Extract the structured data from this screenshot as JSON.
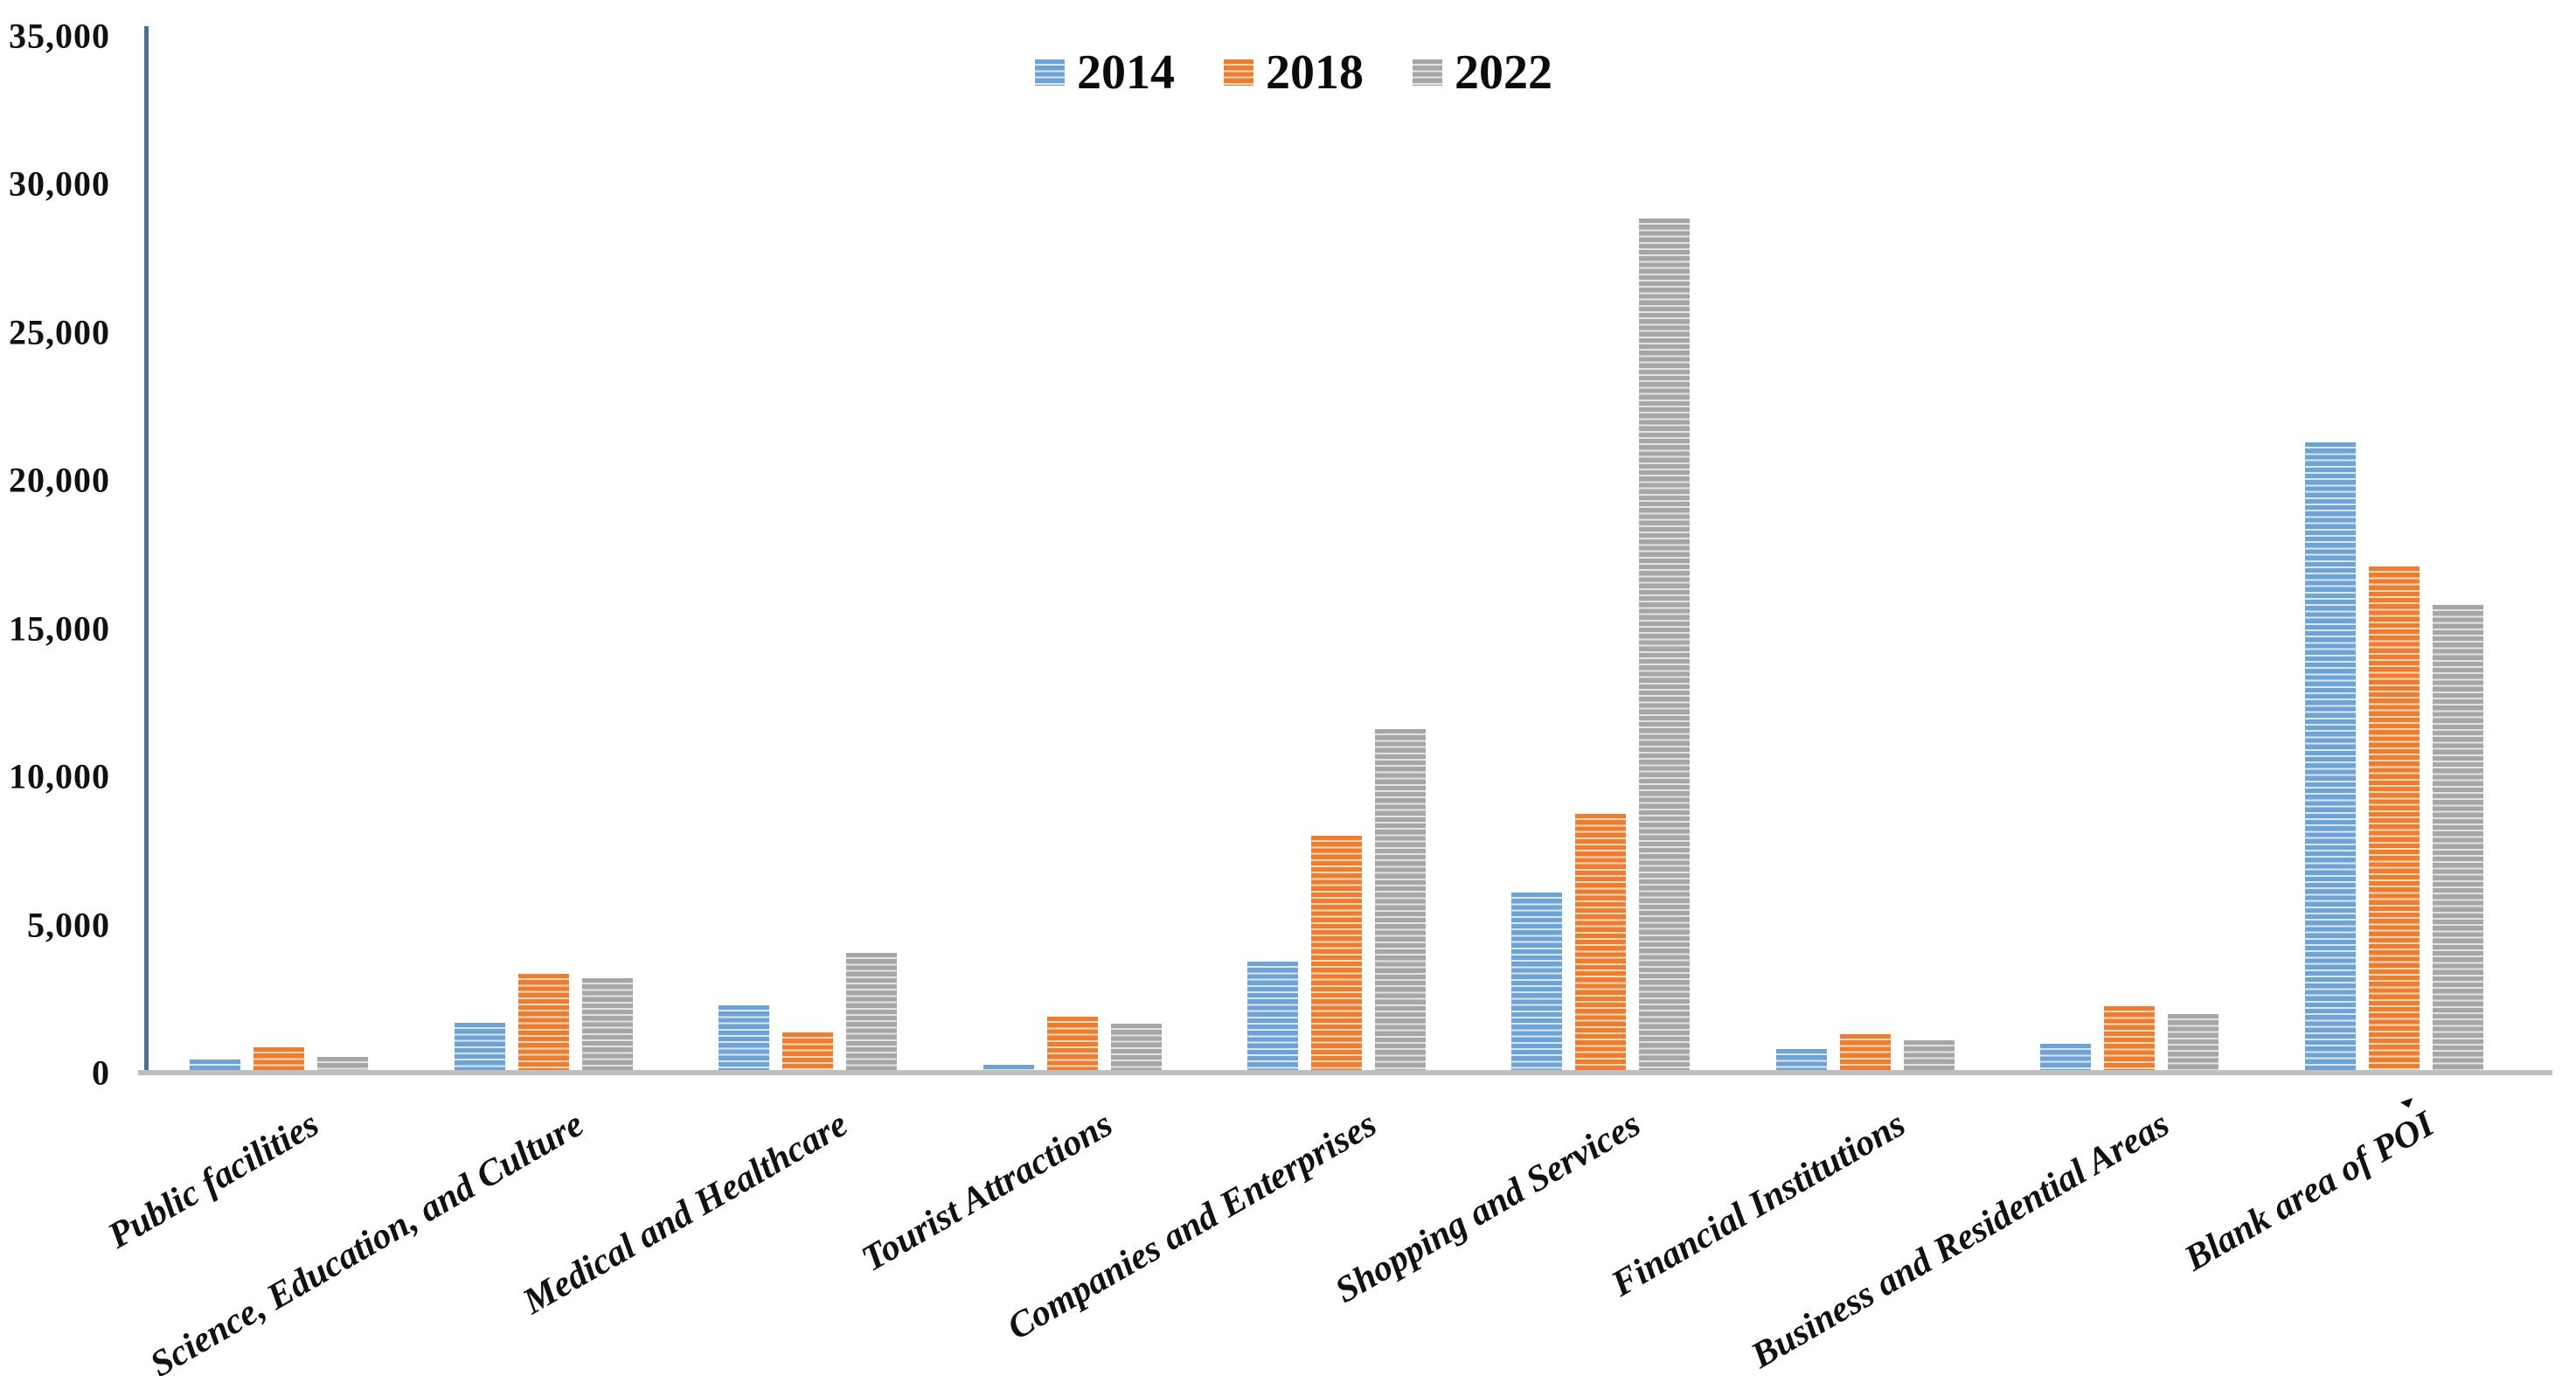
{
  "chart_data": {
    "type": "bar",
    "title": "",
    "xlabel": "",
    "ylabel": "",
    "categories": [
      "Public facilities",
      "Science, Education, and Culture",
      "Medical and Healthcare",
      "Tourist Attractions",
      "Companies and Enterprises",
      "Shopping and Services",
      "Financial Institutions",
      "Business and Residential Areas",
      "Blank area of POI"
    ],
    "series": [
      {
        "name": "2014",
        "color": "#6FA3D6",
        "stripe_color": "#D8E7F5",
        "values": [
          350,
          1600,
          2200,
          180,
          3650,
          6000,
          710,
          900,
          21200
        ]
      },
      {
        "name": "2018",
        "color": "#ED7D31",
        "stripe_color": "#FBD9BB",
        "values": [
          760,
          3250,
          1270,
          1790,
          7900,
          8650,
          1210,
          2150,
          17000
        ]
      },
      {
        "name": "2022",
        "color": "#A6A6A6",
        "stripe_color": "#E4E4E4",
        "values": [
          440,
          3100,
          3950,
          1560,
          11500,
          28750,
          1000,
          1900,
          15700
        ]
      }
    ],
    "ylim": [
      0,
      35000
    ],
    "yticks": [
      {
        "value": 0,
        "label": "0"
      },
      {
        "value": 5000,
        "label": "5,000"
      },
      {
        "value": 10000,
        "label": "10,000"
      },
      {
        "value": 15000,
        "label": "15,000"
      },
      {
        "value": 20000,
        "label": "20,000"
      },
      {
        "value": 25000,
        "label": "25,000"
      },
      {
        "value": 30000,
        "label": "30,000"
      },
      {
        "value": 35000,
        "label": "35,000"
      }
    ],
    "grid": false,
    "legend_position": "top-center",
    "bar_pattern": "horizontal-stripes"
  },
  "colors": {
    "axis_line": "#51708E",
    "baseline": "#BFBFBF",
    "text": "#111111",
    "background": "#FFFFFF"
  }
}
